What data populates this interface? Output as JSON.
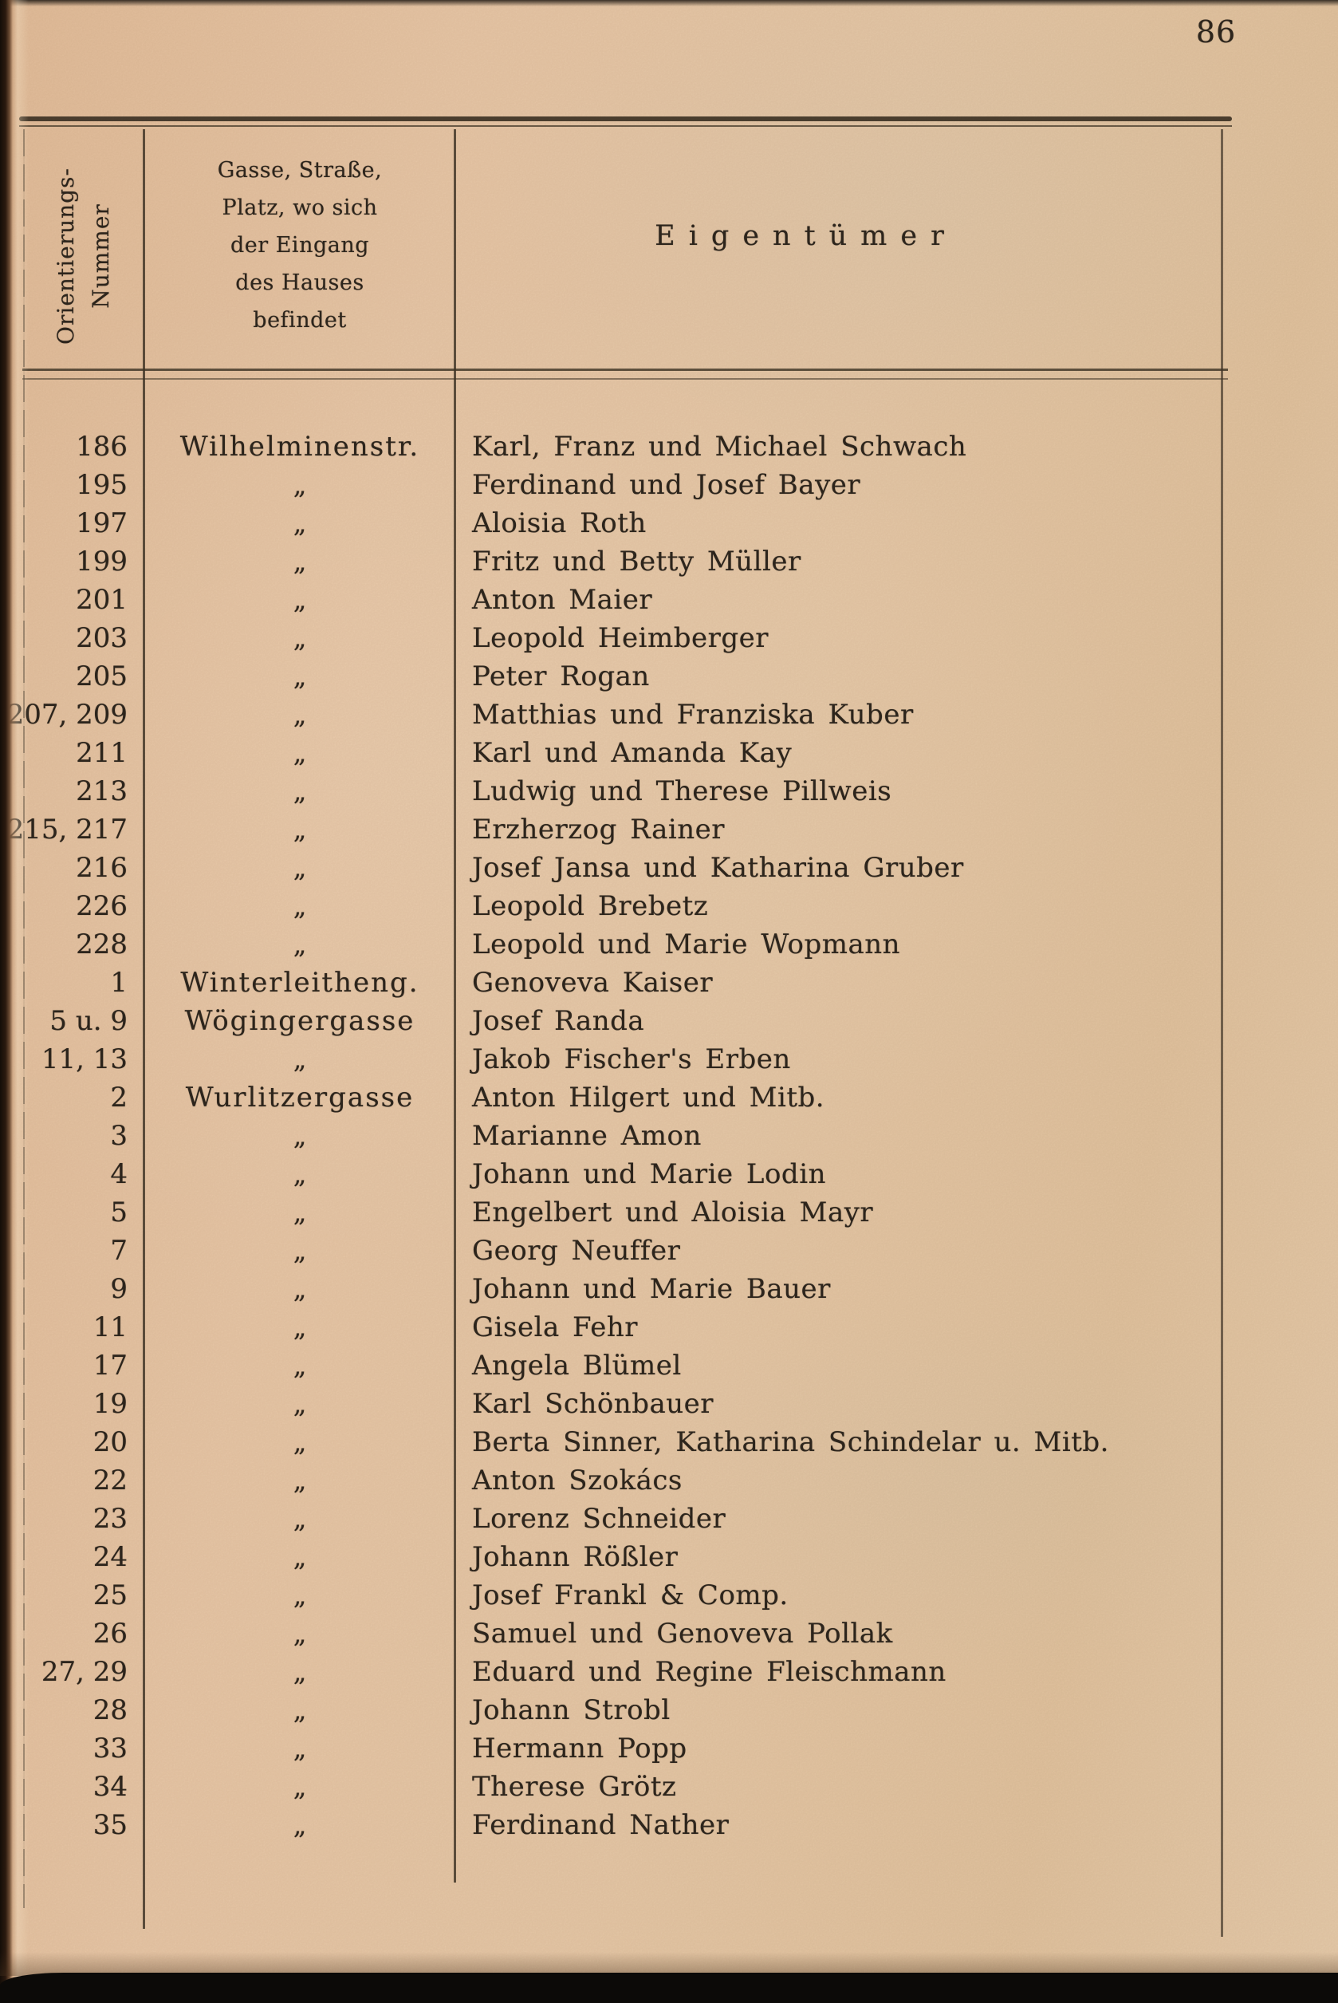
{
  "page": {
    "number": "86"
  },
  "table": {
    "header": {
      "col1_lines": [
        "Orientierungs-",
        "Nummer"
      ],
      "col2_lines": [
        "Gasse, Straße,",
        "Platz, wo sich",
        "der Eingang",
        "des Hauses",
        "befindet"
      ],
      "col3": "Eigentümer"
    },
    "ditto_mark": "„",
    "rows": [
      {
        "num": "186",
        "street": "Wilhelminenstr.",
        "owner": "Karl, Franz und Michael Schwach"
      },
      {
        "num": "195",
        "street": "„",
        "owner": "Ferdinand und Josef Bayer"
      },
      {
        "num": "197",
        "street": "„",
        "owner": "Aloisia Roth"
      },
      {
        "num": "199",
        "street": "„",
        "owner": "Fritz und Betty Müller"
      },
      {
        "num": "201",
        "street": "„",
        "owner": "Anton Maier"
      },
      {
        "num": "203",
        "street": "„",
        "owner": "Leopold Heimberger"
      },
      {
        "num": "205",
        "street": "„",
        "owner": "Peter Rogan"
      },
      {
        "num": "207, 209",
        "street": "„",
        "owner": "Matthias und Franziska Kuber"
      },
      {
        "num": "211",
        "street": "„",
        "owner": "Karl und Amanda Kay"
      },
      {
        "num": "213",
        "street": "„",
        "owner": "Ludwig und Therese Pillweis"
      },
      {
        "num": "215, 217",
        "street": "„",
        "owner": "Erzherzog Rainer"
      },
      {
        "num": "216",
        "street": "„",
        "owner": "Josef Jansa und Katharina Gruber"
      },
      {
        "num": "226",
        "street": "„",
        "owner": "Leopold Brebetz"
      },
      {
        "num": "228",
        "street": "„",
        "owner": "Leopold und Marie Wopmann"
      },
      {
        "num": "1",
        "street": "Winterleitheng.",
        "owner": "Genoveva Kaiser"
      },
      {
        "num": "5 u. 9",
        "street": "Wögingergasse",
        "owner": "Josef Randa"
      },
      {
        "num": "11, 13",
        "street": "„",
        "owner": "Jakob Fischer's Erben"
      },
      {
        "num": "2",
        "street": "Wurlitzergasse",
        "owner": "Anton Hilgert und Mitb."
      },
      {
        "num": "3",
        "street": "„",
        "owner": "Marianne Amon"
      },
      {
        "num": "4",
        "street": "„",
        "owner": "Johann und Marie Lodin"
      },
      {
        "num": "5",
        "street": "„",
        "owner": "Engelbert und Aloisia Mayr"
      },
      {
        "num": "7",
        "street": "„",
        "owner": "Georg Neuffer"
      },
      {
        "num": "9",
        "street": "„",
        "owner": "Johann und Marie Bauer"
      },
      {
        "num": "11",
        "street": "„",
        "owner": "Gisela Fehr"
      },
      {
        "num": "17",
        "street": "„",
        "owner": "Angela Blümel"
      },
      {
        "num": "19",
        "street": "„",
        "owner": "Karl Schönbauer"
      },
      {
        "num": "20",
        "street": "„",
        "owner": "Berta Sinner, Katharina Schindelar u. Mitb."
      },
      {
        "num": "22",
        "street": "„",
        "owner": "Anton Szokács"
      },
      {
        "num": "23",
        "street": "„",
        "owner": "Lorenz Schneider"
      },
      {
        "num": "24",
        "street": "„",
        "owner": "Johann Rößler"
      },
      {
        "num": "25",
        "street": "„",
        "owner": "Josef Frankl & Comp."
      },
      {
        "num": "26",
        "street": "„",
        "owner": "Samuel und Genoveva Pollak"
      },
      {
        "num": "27, 29",
        "street": "„",
        "owner": "Eduard und Regine Fleischmann"
      },
      {
        "num": "28",
        "street": "„",
        "owner": "Johann Strobl"
      },
      {
        "num": "33",
        "street": "„",
        "owner": "Hermann Popp"
      },
      {
        "num": "34",
        "street": "„",
        "owner": "Therese Grötz"
      },
      {
        "num": "35",
        "street": "„",
        "owner": "Ferdinand Nather"
      }
    ]
  }
}
